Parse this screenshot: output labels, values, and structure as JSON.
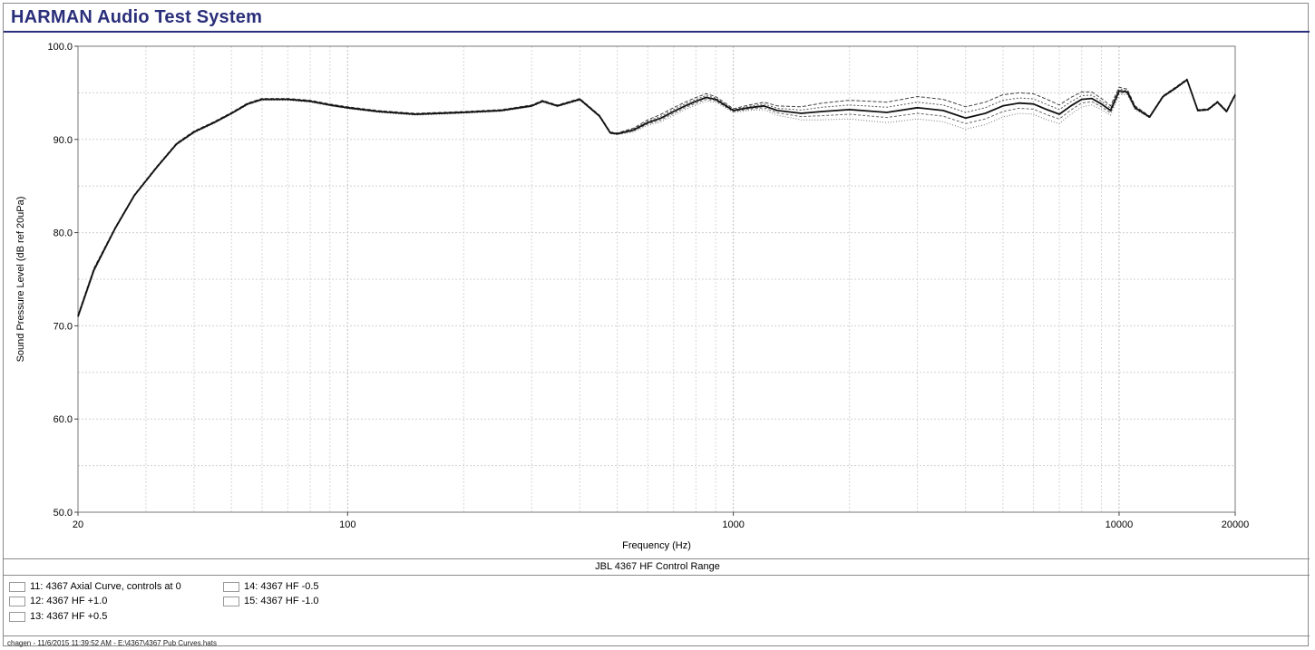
{
  "app": {
    "title": "HARMAN Audio Test System"
  },
  "chart_data": {
    "type": "line",
    "title": "",
    "subtitle": "JBL 4367 HF Control Range",
    "xlabel": "Frequency (Hz)",
    "ylabel": "Sound Pressure Level (dB ref 20uPa)",
    "xscale": "log",
    "xlim": [
      20,
      20000
    ],
    "ylim": [
      50,
      100
    ],
    "xticks": [
      20,
      100,
      1000,
      10000,
      20000
    ],
    "xtick_labels": [
      "20",
      "100",
      "1000",
      "10000",
      "20000"
    ],
    "yticks": [
      50,
      60,
      70,
      80,
      90,
      100
    ],
    "ytick_labels": [
      "50.0",
      "60.0",
      "70.0",
      "80.0",
      "90.0",
      "100.0"
    ],
    "grid": true,
    "legend_position": "bottom-left",
    "x": [
      20,
      22,
      25,
      28,
      32,
      36,
      40,
      45,
      50,
      55,
      60,
      70,
      80,
      90,
      100,
      120,
      150,
      200,
      250,
      300,
      320,
      350,
      400,
      450,
      480,
      500,
      550,
      600,
      650,
      700,
      750,
      800,
      850,
      900,
      1000,
      1100,
      1200,
      1300,
      1500,
      1700,
      2000,
      2500,
      3000,
      3500,
      4000,
      4500,
      5000,
      5500,
      6000,
      6500,
      7000,
      7500,
      8000,
      8500,
      9000,
      9500,
      10000,
      10500,
      11000,
      12000,
      13000,
      14000,
      15000,
      16000,
      17000,
      18000,
      19000,
      20000
    ],
    "series": [
      {
        "name": "11: 4367 Axial Curve, controls at 0",
        "values": [
          71,
          76,
          80.5,
          84,
          87,
          89.5,
          90.8,
          91.8,
          92.8,
          93.8,
          94.3,
          94.3,
          94.1,
          93.7,
          93.4,
          93,
          92.7,
          92.9,
          93.1,
          93.6,
          94.1,
          93.6,
          94.3,
          92.5,
          90.7,
          90.6,
          91,
          91.8,
          92.3,
          93,
          93.6,
          94.1,
          94.5,
          94.3,
          93.1,
          93.4,
          93.6,
          93.1,
          92.8,
          93,
          93.2,
          92.9,
          93.4,
          93.1,
          92.3,
          92.8,
          93.6,
          93.9,
          93.8,
          93.2,
          92.7,
          93.6,
          94.3,
          94.4,
          93.8,
          93.1,
          95.2,
          95.1,
          93.4,
          92.4,
          94.6,
          95.5,
          96.4,
          93.1,
          93.2,
          94,
          93,
          94.8
        ]
      },
      {
        "name": "12: 4367  HF +1.0",
        "values": [
          71.2,
          76.2,
          80.6,
          84.1,
          87.1,
          89.6,
          90.9,
          91.9,
          92.9,
          93.9,
          94.4,
          94.4,
          94.2,
          93.8,
          93.5,
          93.1,
          92.8,
          93,
          93.2,
          93.7,
          94.2,
          93.7,
          94.4,
          92.6,
          90.8,
          90.7,
          91.2,
          92.1,
          92.7,
          93.4,
          94,
          94.5,
          94.9,
          94.6,
          93.3,
          93.7,
          94,
          93.6,
          93.5,
          93.9,
          94.2,
          94,
          94.6,
          94.3,
          93.5,
          94,
          94.8,
          95,
          94.9,
          94.3,
          93.7,
          94.5,
          95.1,
          95.1,
          94.4,
          93.6,
          95.6,
          95.4,
          93.6,
          92.5,
          94.7,
          95.6,
          96.5,
          93.2,
          93.3,
          94.1,
          93.1,
          94.9
        ]
      },
      {
        "name": "13: 4367  HF +0.5",
        "values": [
          71.1,
          76.1,
          80.55,
          84.05,
          87.05,
          89.55,
          90.85,
          91.85,
          92.85,
          93.85,
          94.35,
          94.35,
          94.15,
          93.75,
          93.45,
          93.05,
          92.75,
          92.95,
          93.15,
          93.65,
          94.15,
          93.65,
          94.35,
          92.55,
          90.75,
          90.65,
          91.1,
          91.95,
          92.5,
          93.2,
          93.8,
          94.3,
          94.7,
          94.45,
          93.2,
          93.55,
          93.8,
          93.35,
          93.15,
          93.45,
          93.7,
          93.45,
          94,
          93.7,
          92.9,
          93.4,
          94.2,
          94.45,
          94.35,
          93.75,
          93.2,
          94.05,
          94.7,
          94.75,
          94.1,
          93.35,
          95.4,
          95.25,
          93.5,
          92.45,
          94.65,
          95.55,
          96.45,
          93.15,
          93.25,
          94.05,
          93.05,
          94.85
        ]
      },
      {
        "name": "14: 4367  HF -0.5",
        "values": [
          70.9,
          75.9,
          80.45,
          83.95,
          86.95,
          89.45,
          90.75,
          91.75,
          92.75,
          93.75,
          94.25,
          94.25,
          94.05,
          93.65,
          93.35,
          92.95,
          92.65,
          92.85,
          93.05,
          93.55,
          94.05,
          93.55,
          94.25,
          92.45,
          90.65,
          90.55,
          90.9,
          91.65,
          92.1,
          92.8,
          93.4,
          93.9,
          94.3,
          94.15,
          93,
          93.25,
          93.4,
          92.85,
          92.45,
          92.55,
          92.7,
          92.35,
          92.8,
          92.5,
          91.7,
          92.2,
          93,
          93.35,
          93.25,
          92.65,
          92.2,
          93.15,
          93.9,
          94.05,
          93.5,
          92.85,
          95,
          94.95,
          93.3,
          92.35,
          94.55,
          95.45,
          96.35,
          93.05,
          93.15,
          93.95,
          92.95,
          94.75
        ]
      },
      {
        "name": "15: 4367  HF -1.0",
        "values": [
          70.8,
          75.8,
          80.4,
          83.9,
          86.9,
          89.4,
          90.7,
          91.7,
          92.7,
          93.7,
          94.2,
          94.2,
          94,
          93.6,
          93.3,
          92.9,
          92.6,
          92.8,
          93,
          93.5,
          94,
          93.5,
          94.2,
          92.4,
          90.6,
          90.5,
          90.8,
          91.5,
          91.9,
          92.6,
          93.2,
          93.7,
          94.1,
          94,
          92.9,
          93.1,
          93.2,
          92.6,
          92.1,
          92.1,
          92.2,
          91.8,
          92.2,
          91.9,
          91.1,
          91.6,
          92.4,
          92.8,
          92.7,
          92.1,
          91.7,
          92.7,
          93.5,
          93.7,
          93.2,
          92.6,
          94.8,
          94.8,
          93.2,
          92.3,
          94.5,
          95.4,
          96.3,
          93,
          93.1,
          93.9,
          92.9,
          94.7
        ]
      }
    ]
  },
  "legend": {
    "items": [
      "11: 4367 Axial Curve, controls at 0",
      "12: 4367  HF +1.0",
      "13: 4367  HF +0.5",
      "14: 4367  HF -0.5",
      "15: 4367  HF -1.0"
    ]
  },
  "footer": {
    "text": "chagen - 11/6/2015 11:39:52 AM - E:\\4367\\4367 Pub Curves.hats"
  }
}
